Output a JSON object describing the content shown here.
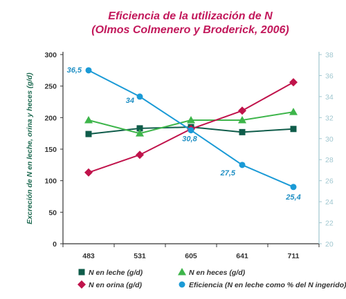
{
  "chart_data": {
    "type": "line",
    "title": "Eficiencia de la utilización de N",
    "subtitle": "(Olmos Colmenero y Broderick, 2006)",
    "ylabel": "Excreción de N en leche, orina y heces (g/d)",
    "categories": [
      "483",
      "531",
      "605",
      "641",
      "711"
    ],
    "ylim": [
      0,
      300
    ],
    "yticks": [
      "0",
      "50",
      "100",
      "150",
      "200",
      "250",
      "300"
    ],
    "y2lim": [
      20,
      38
    ],
    "y2ticks": [
      "20",
      "22",
      "24",
      "26",
      "28",
      "30",
      "32",
      "34",
      "36",
      "38"
    ],
    "grid": false,
    "legend_position": "bottom",
    "series": [
      {
        "name": "N en leche (g/d)",
        "axis": "left",
        "marker": "square",
        "color": "#0f5c4a",
        "values": [
          174,
          183,
          185,
          177,
          182
        ]
      },
      {
        "name": "N en heces (g/d)",
        "axis": "left",
        "marker": "triangle",
        "color": "#3db54a",
        "values": [
          196,
          175,
          196,
          196,
          209
        ]
      },
      {
        "name": "N en orina (g/d)",
        "axis": "left",
        "marker": "diamond",
        "color": "#c0134b",
        "values": [
          113,
          141,
          182,
          211,
          256
        ]
      },
      {
        "name": "Eficiencia (N en leche como % del N ingerido)",
        "axis": "right",
        "marker": "circle",
        "color": "#1a9ad6",
        "values": [
          36.5,
          34,
          30.8,
          27.5,
          25.4
        ],
        "data_labels": [
          "36,5",
          "34",
          "30,8",
          "27,5",
          "25,4"
        ]
      }
    ]
  }
}
